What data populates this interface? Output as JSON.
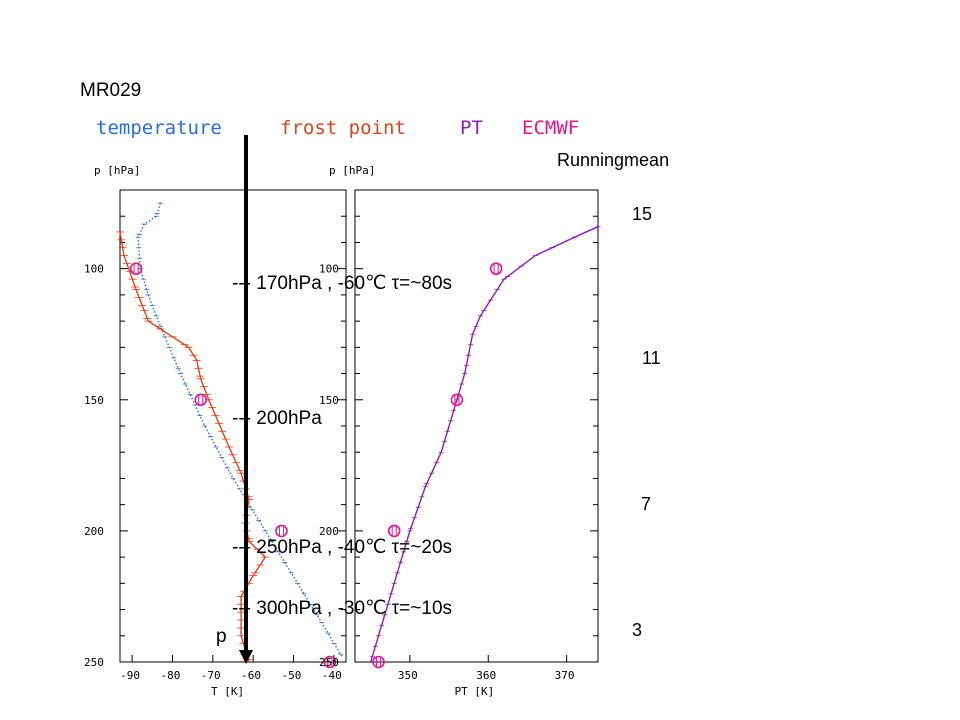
{
  "slide": {
    "title": "MR029",
    "running_mean_title": "Runningmean",
    "running_mean_values": [
      "15",
      "11",
      "7",
      "3"
    ],
    "annotations": [
      "--- 170hPa , -60℃  τ=~80s",
      "--- 200hPa",
      "--- 250hPa , -40℃ τ=~20s",
      "--- 300hPa , -30℃ τ=~10s"
    ],
    "arrow_label": "p"
  },
  "legend": [
    {
      "label": "temperature",
      "color": "#2a6fd6"
    },
    {
      "label": "frost point",
      "color": "#e0441c"
    },
    {
      "label": "PT",
      "color": "#8b1fb5"
    },
    {
      "label": "ECMWF",
      "color": "#e0188c"
    }
  ],
  "chart_data": [
    {
      "type": "line",
      "ylabel": "p [hPa]",
      "xlabel": "T [K]",
      "y_ticks": [
        100,
        150,
        200,
        250
      ],
      "x_ticks": [
        -90,
        -80,
        -70,
        -60,
        -50,
        -40
      ],
      "xlim": [
        -93,
        -37
      ],
      "ylim": [
        70,
        250
      ],
      "y_reversed": true,
      "series": [
        {
          "name": "temperature",
          "color": "#2a6fd6",
          "points": [
            [
              -83,
              75
            ],
            [
              -84,
              80
            ],
            [
              -87,
              83
            ],
            [
              -88.5,
              88
            ],
            [
              -88,
              100
            ],
            [
              -86,
              110
            ],
            [
              -83,
              122
            ],
            [
              -78,
              140
            ],
            [
              -72,
              160
            ],
            [
              -65,
              180
            ],
            [
              -57,
              200
            ],
            [
              -49,
              220
            ],
            [
              -43,
              235
            ],
            [
              -38,
              248
            ]
          ]
        },
        {
          "name": "frost point",
          "color": "#e0441c",
          "points": [
            [
              -93,
              86
            ],
            [
              -92,
              95
            ],
            [
              -89,
              108
            ],
            [
              -87,
              116
            ],
            [
              -86,
              120
            ],
            [
              -83,
              123
            ],
            [
              -80,
              126
            ],
            [
              -76,
              130
            ],
            [
              -74,
              135
            ],
            [
              -73,
              142
            ],
            [
              -71,
              150
            ],
            [
              -66,
              168
            ],
            [
              -63,
              178
            ],
            [
              -61,
              188
            ],
            [
              -62,
              197
            ],
            [
              -61,
              204
            ],
            [
              -57,
              210
            ],
            [
              -60,
              217
            ],
            [
              -63,
              225
            ],
            [
              -63,
              240
            ],
            [
              -61,
              250
            ]
          ]
        },
        {
          "name": "ECMWF",
          "color": "#e0188c",
          "points": [
            [
              -89,
              100
            ],
            [
              -73,
              150
            ],
            [
              -53,
              200
            ],
            [
              -41,
              250
            ]
          ]
        }
      ]
    },
    {
      "type": "line",
      "ylabel": "p [hPa]",
      "xlabel": "PT [K]",
      "y_ticks": [
        100,
        150,
        200,
        250
      ],
      "x_ticks": [
        350,
        360,
        370
      ],
      "xlim": [
        343,
        374
      ],
      "ylim": [
        70,
        250
      ],
      "y_reversed": true,
      "series": [
        {
          "name": "PT",
          "color": "#8b1fb5",
          "points": [
            [
              374,
              84
            ],
            [
              371,
              88
            ],
            [
              366,
              95
            ],
            [
              362,
              104
            ],
            [
              359,
              118
            ],
            [
              358,
              125
            ],
            [
              357,
              140
            ],
            [
              356,
              150
            ],
            [
              354,
              170
            ],
            [
              352,
              183
            ],
            [
              350,
              200
            ],
            [
              348,
              220
            ],
            [
              346,
              240
            ],
            [
              345,
              250
            ]
          ]
        },
        {
          "name": "ECMWF",
          "color": "#e0188c",
          "points": [
            [
              361,
              100
            ],
            [
              356,
              150
            ],
            [
              348,
              200
            ],
            [
              346,
              250
            ]
          ]
        }
      ]
    }
  ]
}
